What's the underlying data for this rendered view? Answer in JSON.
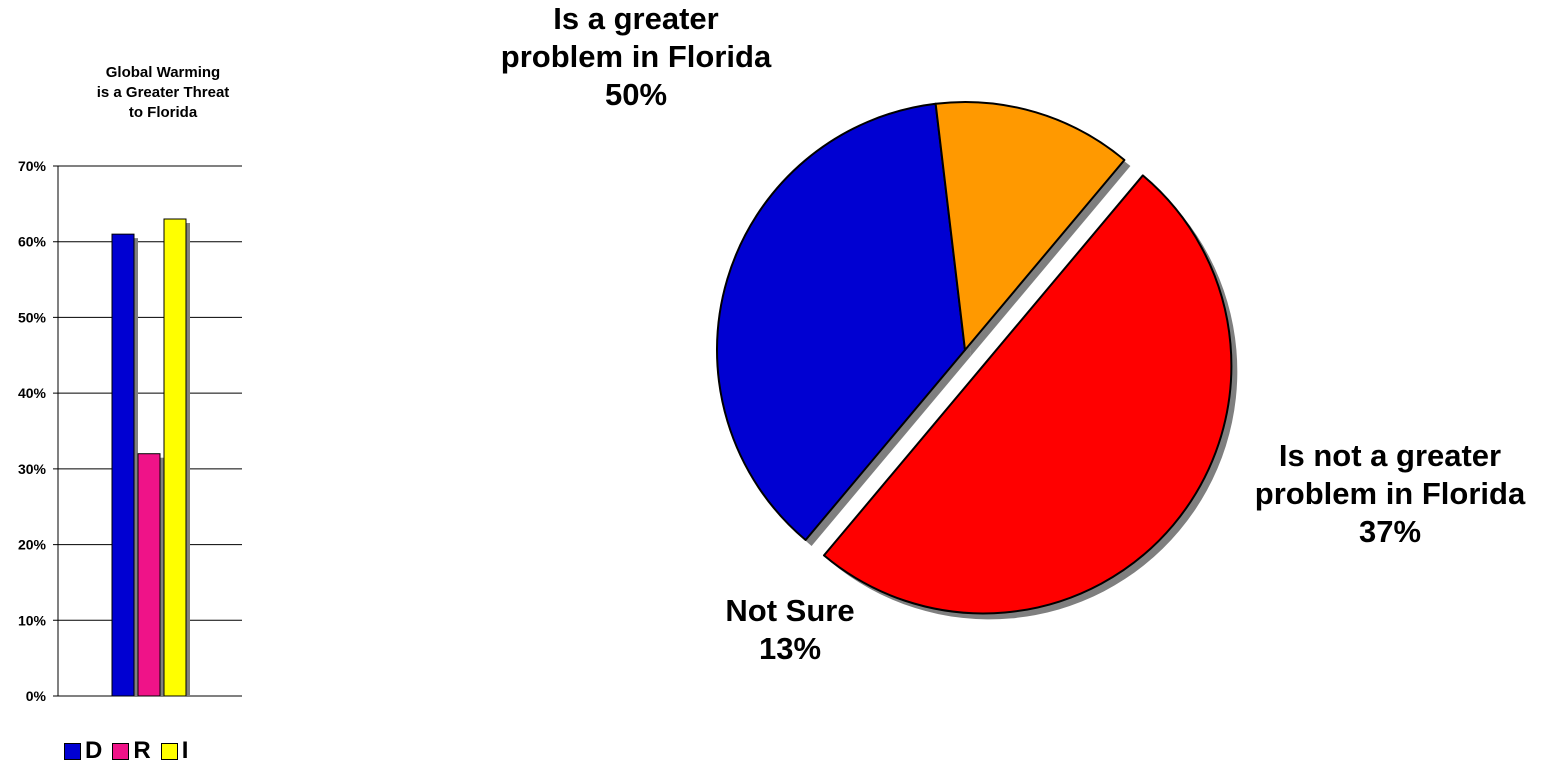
{
  "chart_data": [
    {
      "type": "bar",
      "title_lines": [
        "Global Warming",
        "is a Greater Threat",
        "to Florida"
      ],
      "categories": [
        "D",
        "R",
        "I"
      ],
      "values": [
        61,
        32,
        63
      ],
      "colors": [
        "#0000d2",
        "#ef1388",
        "#ffff00"
      ],
      "yticks": [
        "0%",
        "10%",
        "20%",
        "30%",
        "40%",
        "50%",
        "60%",
        "70%"
      ],
      "ylim": [
        0,
        70
      ],
      "grid": true,
      "legend": [
        {
          "label": "D",
          "color": "#0000d2"
        },
        {
          "label": "R",
          "color": "#ef1388"
        },
        {
          "label": "I",
          "color": "#ffff00"
        }
      ],
      "legend_position": "bottom"
    },
    {
      "type": "pie",
      "slices": [
        {
          "name": "Is a greater problem in Florida",
          "value": 50,
          "color": "#ff0000",
          "label_lines": [
            "Is a greater",
            "problem in Florida"
          ],
          "value_label": "50%",
          "exploded": true
        },
        {
          "name": "Is not a greater problem in Florida",
          "value": 37,
          "color": "#0000d2",
          "label_lines": [
            "Is not a greater",
            "problem in Florida"
          ],
          "value_label": "37%",
          "exploded": false
        },
        {
          "name": "Not Sure",
          "value": 13,
          "color": "#ff9900",
          "label_lines": [
            "Not Sure"
          ],
          "value_label": "13%",
          "exploded": false
        }
      ]
    }
  ]
}
